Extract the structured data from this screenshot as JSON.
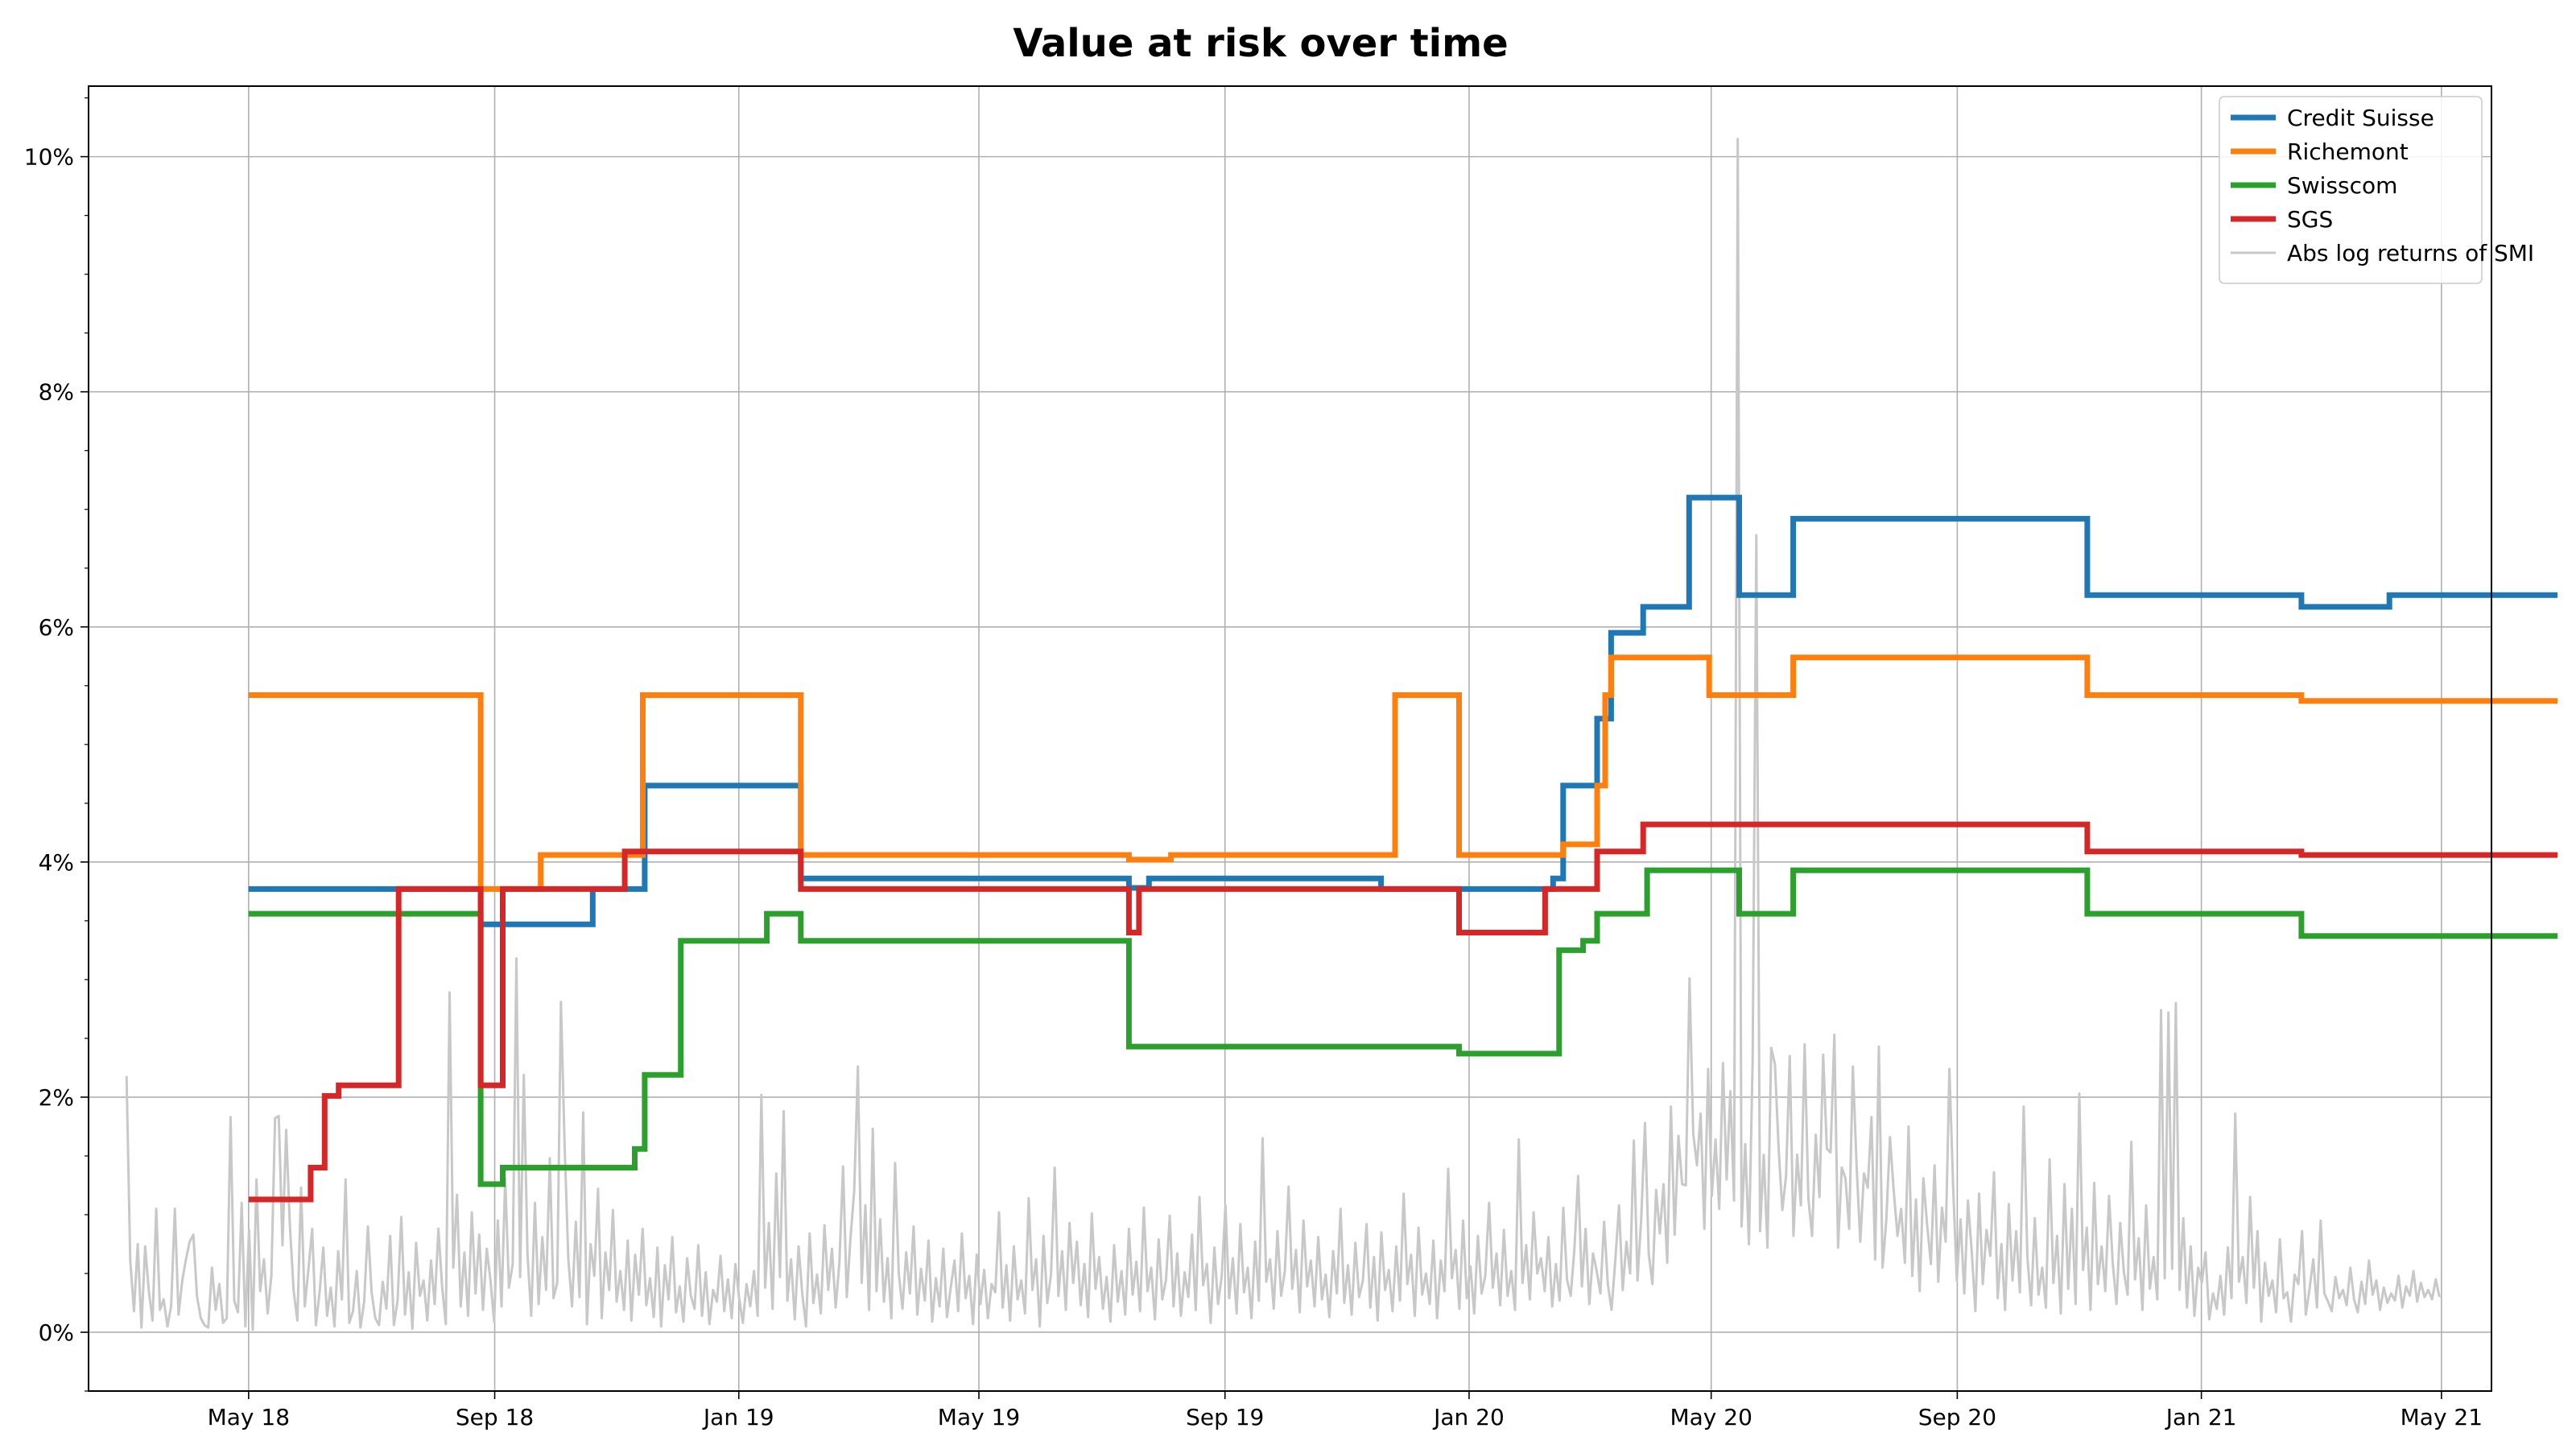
{
  "chart_data": {
    "type": "line",
    "title": "Value at risk over time",
    "xlabel": "",
    "ylabel": "",
    "x_ticks": [
      "May 18",
      "Sep 18",
      "Jan 19",
      "May 19",
      "Sep 19",
      "Jan 20",
      "May 20",
      "Sep 20",
      "Jan 21",
      "May 21"
    ],
    "y_ticks": [
      "0%",
      "2%",
      "4%",
      "6%",
      "8%",
      "10%"
    ],
    "xlim": [
      "2018-02-10",
      "2021-05-26"
    ],
    "ylim": [
      -0.5,
      10.6
    ],
    "y_unit": "%",
    "grid": true,
    "legend_position": "top-right",
    "series": [
      {
        "name": "Credit Suisse",
        "color": "#1f77b4",
        "step": true,
        "points": [
          [
            "2018-05-01",
            3.77
          ],
          [
            "2018-08-25",
            3.47
          ],
          [
            "2018-10-20",
            3.77
          ],
          [
            "2018-11-15",
            4.65
          ],
          [
            "2019-02-01",
            3.86
          ],
          [
            "2019-07-15",
            3.78
          ],
          [
            "2019-07-25",
            3.86
          ],
          [
            "2019-11-18",
            3.77
          ],
          [
            "2020-02-12",
            3.86
          ],
          [
            "2020-02-17",
            4.65
          ],
          [
            "2020-03-05",
            5.22
          ],
          [
            "2020-03-12",
            5.95
          ],
          [
            "2020-03-28",
            6.17
          ],
          [
            "2020-04-20",
            7.1
          ],
          [
            "2020-05-15",
            6.27
          ],
          [
            "2020-06-11",
            6.92
          ],
          [
            "2020-11-05",
            6.27
          ],
          [
            "2021-02-20",
            6.17
          ],
          [
            "2021-04-05",
            6.27
          ],
          [
            "2021-06-28",
            6.27
          ]
        ]
      },
      {
        "name": "Richemont",
        "color": "#ff7f0e",
        "step": true,
        "points": [
          [
            "2018-05-01",
            5.42
          ],
          [
            "2018-08-25",
            3.77
          ],
          [
            "2018-09-24",
            4.06
          ],
          [
            "2018-11-14",
            5.42
          ],
          [
            "2019-02-01",
            4.06
          ],
          [
            "2019-07-15",
            4.02
          ],
          [
            "2019-08-05",
            4.06
          ],
          [
            "2019-11-25",
            5.42
          ],
          [
            "2019-12-27",
            4.06
          ],
          [
            "2020-02-17",
            4.15
          ],
          [
            "2020-03-05",
            4.65
          ],
          [
            "2020-03-09",
            5.42
          ],
          [
            "2020-03-12",
            5.74
          ],
          [
            "2020-04-30",
            5.42
          ],
          [
            "2020-06-11",
            5.74
          ],
          [
            "2020-11-05",
            5.42
          ],
          [
            "2021-02-20",
            5.37
          ],
          [
            "2021-06-28",
            5.37
          ]
        ]
      },
      {
        "name": "Swisscom",
        "color": "#2ca02c",
        "step": true,
        "points": [
          [
            "2018-05-01",
            3.56
          ],
          [
            "2018-08-25",
            1.26
          ],
          [
            "2018-09-05",
            1.4
          ],
          [
            "2018-11-10",
            1.56
          ],
          [
            "2018-11-15",
            2.19
          ],
          [
            "2018-12-03",
            3.33
          ],
          [
            "2019-01-15",
            3.56
          ],
          [
            "2019-02-01",
            3.33
          ],
          [
            "2019-07-15",
            2.43
          ],
          [
            "2019-12-27",
            2.37
          ],
          [
            "2020-02-15",
            3.25
          ],
          [
            "2020-02-27",
            3.33
          ],
          [
            "2020-03-05",
            3.56
          ],
          [
            "2020-03-30",
            3.93
          ],
          [
            "2020-05-15",
            3.56
          ],
          [
            "2020-06-11",
            3.93
          ],
          [
            "2020-11-05",
            3.56
          ],
          [
            "2021-02-20",
            3.37
          ],
          [
            "2021-06-28",
            3.37
          ]
        ]
      },
      {
        "name": "SGS",
        "color": "#d62728",
        "step": true,
        "points": [
          [
            "2018-05-01",
            1.13
          ],
          [
            "2018-06-01",
            1.4
          ],
          [
            "2018-06-08",
            2.01
          ],
          [
            "2018-06-15",
            2.1
          ],
          [
            "2018-07-15",
            3.77
          ],
          [
            "2018-08-25",
            2.1
          ],
          [
            "2018-09-05",
            3.77
          ],
          [
            "2018-11-05",
            4.09
          ],
          [
            "2019-02-01",
            3.77
          ],
          [
            "2019-07-15",
            3.4
          ],
          [
            "2019-07-20",
            3.77
          ],
          [
            "2019-12-27",
            3.4
          ],
          [
            "2020-02-08",
            3.77
          ],
          [
            "2020-03-05",
            4.09
          ],
          [
            "2020-03-28",
            4.32
          ],
          [
            "2020-11-05",
            4.09
          ],
          [
            "2021-02-20",
            4.06
          ],
          [
            "2021-06-28",
            4.06
          ]
        ]
      },
      {
        "name": "Abs log returns of SMI",
        "color": "#c8c8c8",
        "step": false,
        "x_start": "2018-03-01",
        "x_end": "2021-04-30",
        "values": [
          2.18,
          0.61,
          0.18,
          0.75,
          0.04,
          0.73,
          0.35,
          0.1,
          1.05,
          0.19,
          0.28,
          0.05,
          0.22,
          1.05,
          0.15,
          0.44,
          0.62,
          0.77,
          0.83,
          0.3,
          0.12,
          0.06,
          0.04,
          0.55,
          0.19,
          0.41,
          0.08,
          0.12,
          1.83,
          0.27,
          0.17,
          1.1,
          0.05,
          0.87,
          0.02,
          1.3,
          0.35,
          0.62,
          0.16,
          0.48,
          1.82,
          1.84,
          0.74,
          1.72,
          0.91,
          0.35,
          0.1,
          1.23,
          0.22,
          0.54,
          0.88,
          0.06,
          0.34,
          0.72,
          0.14,
          0.38,
          0.05,
          0.69,
          0.28,
          1.3,
          0.08,
          0.18,
          0.52,
          0.04,
          0.26,
          0.9,
          0.34,
          0.12,
          0.06,
          0.43,
          0.2,
          0.82,
          0.06,
          0.27,
          0.98,
          0.15,
          0.51,
          0.03,
          0.76,
          0.31,
          0.44,
          0.1,
          0.61,
          0.24,
          0.88,
          0.39,
          0.07,
          2.89,
          0.55,
          1.17,
          0.22,
          0.68,
          0.14,
          1.02,
          0.33,
          0.83,
          0.19,
          0.71,
          0.45,
          0.09,
          0.95,
          0.22,
          1.31,
          0.38,
          0.58,
          3.18,
          0.47,
          2.19,
          0.66,
          0.14,
          1.1,
          0.24,
          0.81,
          0.36,
          1.48,
          0.29,
          0.42,
          2.81,
          1.59,
          0.62,
          0.22,
          0.94,
          0.3,
          1.87,
          0.07,
          0.75,
          0.48,
          1.22,
          0.12,
          0.68,
          0.36,
          1.04,
          0.26,
          0.52,
          0.19,
          0.78,
          0.1,
          0.66,
          0.32,
          0.88,
          0.23,
          0.46,
          0.13,
          0.72,
          0.05,
          0.57,
          0.28,
          0.81,
          0.17,
          0.39,
          0.09,
          0.63,
          0.31,
          0.2,
          0.74,
          0.14,
          0.51,
          0.07,
          0.36,
          0.26,
          0.65,
          0.18,
          0.45,
          0.12,
          0.58,
          0.29,
          0.08,
          0.41,
          0.22,
          0.52,
          0.14,
          2.02,
          0.38,
          0.93,
          0.2,
          1.35,
          0.47,
          1.88,
          0.27,
          0.62,
          0.11,
          0.73,
          0.33,
          0.05,
          0.84,
          0.25,
          0.49,
          0.16,
          0.91,
          0.36,
          0.71,
          0.21,
          0.59,
          1.41,
          0.3,
          0.8,
          1.2,
          2.26,
          0.42,
          1.08,
          0.19,
          1.73,
          0.35,
          0.96,
          0.26,
          0.63,
          0.12,
          1.44,
          0.5,
          0.2,
          0.68,
          0.33,
          0.9,
          0.15,
          0.54,
          0.27,
          0.78,
          0.09,
          0.46,
          0.22,
          0.71,
          0.13,
          0.38,
          0.61,
          0.18,
          0.84,
          0.29,
          0.48,
          0.07,
          0.66,
          0.24,
          0.53,
          0.12,
          0.41,
          0.34,
          1.02,
          0.21,
          0.57,
          0.1,
          0.73,
          0.28,
          0.44,
          0.16,
          1.14,
          0.36,
          0.62,
          0.05,
          0.82,
          0.25,
          0.49,
          1.4,
          0.31,
          0.69,
          0.19,
          0.93,
          0.42,
          0.77,
          0.23,
          0.58,
          0.13,
          1.01,
          0.37,
          0.64,
          0.2,
          0.47,
          0.09,
          0.74,
          0.26,
          0.52,
          0.15,
          0.88,
          0.32,
          0.6,
          0.18,
          1.06,
          0.35,
          0.55,
          0.11,
          0.79,
          0.28,
          0.45,
          0.99,
          0.22,
          0.67,
          0.14,
          0.51,
          0.3,
          0.83,
          0.19,
          1.15,
          0.4,
          0.58,
          0.08,
          0.72,
          0.24,
          0.48,
          1.08,
          0.29,
          0.63,
          0.16,
          0.92,
          0.34,
          0.55,
          0.12,
          0.77,
          0.27,
          1.65,
          0.43,
          0.62,
          0.2,
          0.86,
          0.31,
          0.52,
          1.24,
          0.37,
          0.7,
          0.17,
          0.95,
          0.39,
          0.61,
          0.22,
          0.81,
          0.28,
          0.49,
          0.13,
          0.69,
          0.33,
          1.05,
          0.25,
          0.57,
          0.15,
          0.76,
          0.3,
          0.44,
          0.92,
          0.21,
          0.64,
          0.1,
          0.85,
          0.36,
          0.53,
          0.18,
          0.73,
          0.27,
          1.18,
          0.41,
          0.66,
          0.14,
          0.89,
          0.32,
          0.5,
          0.24,
          0.78,
          0.12,
          0.61,
          0.35,
          1.39,
          0.46,
          0.7,
          0.2,
          0.95,
          0.29,
          0.56,
          0.16,
          0.82,
          0.33,
          0.48,
          1.1,
          0.38,
          0.67,
          0.23,
          0.87,
          0.31,
          0.52,
          0.19,
          1.64,
          0.42,
          0.74,
          0.28,
          1.02,
          0.5,
          0.63,
          0.35,
          0.81,
          0.22,
          0.58,
          0.27,
          1.06,
          0.45,
          0.31,
          0.71,
          1.33,
          0.39,
          0.88,
          0.24,
          0.67,
          0.52,
          0.33,
          0.94,
          0.41,
          0.19,
          0.61,
          1.08,
          0.36,
          0.77,
          0.5,
          1.63,
          0.44,
          0.97,
          1.78,
          0.67,
          0.41,
          1.21,
          0.84,
          1.26,
          0.59,
          1.92,
          0.83,
          1.67,
          1.26,
          1.25,
          3.01,
          1.69,
          1.42,
          1.86,
          0.88,
          2.24,
          1.16,
          1.64,
          1.05,
          2.29,
          1.3,
          2.05,
          1.12,
          10.15,
          0.9,
          1.6,
          0.75,
          2.31,
          6.78,
          0.86,
          1.51,
          0.72,
          2.42,
          2.28,
          1.56,
          1.04,
          1.33,
          2.35,
          0.82,
          1.51,
          1.08,
          2.45,
          1.14,
          0.82,
          1.68,
          1.15,
          2.36,
          1.56,
          1.53,
          2.53,
          0.72,
          1.4,
          1.31,
          0.88,
          2.26,
          1.42,
          0.77,
          1.35,
          1.23,
          1.83,
          0.62,
          2.43,
          0.55,
          0.95,
          1.66,
          1.21,
          0.82,
          1.05,
          0.59,
          1.75,
          0.48,
          1.13,
          0.35,
          1.31,
          0.92,
          0.58,
          1.42,
          0.43,
          1.06,
          0.77,
          2.24,
          1.25,
          0.44,
          0.96,
          0.33,
          1.12,
          0.69,
          0.18,
          1.18,
          0.41,
          0.87,
          0.65,
          1.36,
          0.29,
          0.75,
          0.19,
          1.09,
          0.44,
          0.86,
          0.34,
          1.92,
          0.64,
          0.23,
          0.97,
          0.32,
          0.55,
          0.21,
          1.47,
          0.42,
          0.82,
          0.16,
          1.26,
          0.37,
          1.05,
          0.24,
          2.03,
          0.53,
          0.89,
          0.19,
          1.27,
          0.41,
          0.73,
          0.35,
          1.16,
          0.59,
          0.24,
          0.93,
          0.51,
          0.32,
          1.62,
          0.45,
          0.8,
          0.19,
          1.08,
          0.37,
          0.64,
          0.28,
          2.74,
          0.46,
          2.72,
          0.54,
          2.8,
          0.36,
          0.97,
          0.21,
          0.73,
          0.14,
          0.55,
          0.42,
          0.68,
          0.11,
          0.33,
          0.2,
          0.48,
          0.15,
          0.72,
          0.29,
          1.86,
          0.43,
          0.64,
          0.25,
          1.15,
          0.38,
          0.86,
          0.09,
          0.59,
          0.31,
          0.44,
          0.17,
          0.79,
          0.29,
          0.34,
          0.09,
          0.49,
          0.41,
          0.86,
          0.15,
          0.37,
          0.62,
          0.21,
          0.95,
          0.33,
          0.26,
          0.18,
          0.47,
          0.29,
          0.36,
          0.23,
          0.55,
          0.28,
          0.17,
          0.43,
          0.24,
          0.61,
          0.32,
          0.44,
          0.19,
          0.38,
          0.25,
          0.33,
          0.27,
          0.48,
          0.21,
          0.39,
          0.31,
          0.52,
          0.26,
          0.42,
          0.3,
          0.36,
          0.28,
          0.45,
          0.3
        ]
      }
    ]
  }
}
